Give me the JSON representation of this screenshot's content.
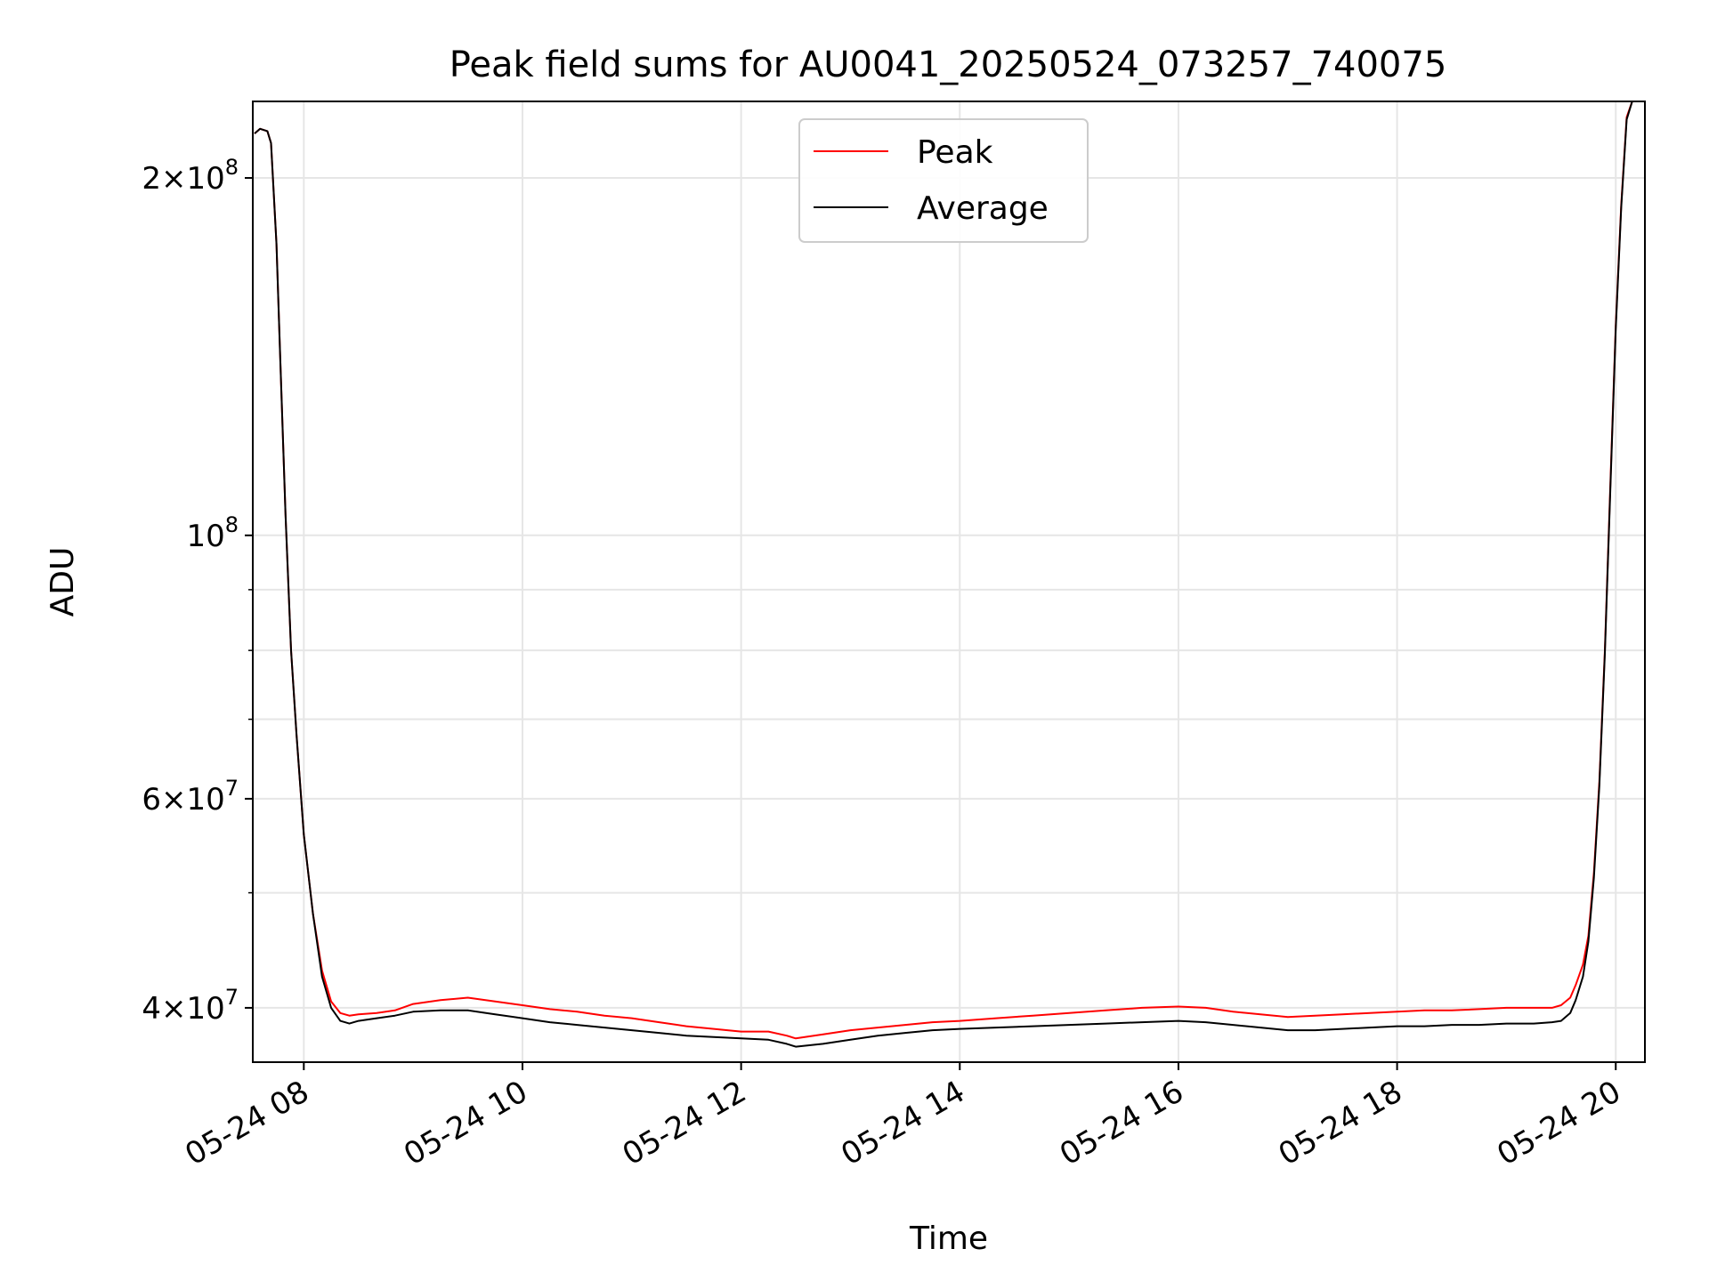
{
  "chart_data": {
    "type": "line",
    "title": "Peak field sums for AU0041_20250524_073257_740075",
    "xlabel": "Time",
    "ylabel": "ADU",
    "y_scale": "log",
    "xlim": [
      "2025-05-24T07:32:00",
      "2025-05-24T20:16:00"
    ],
    "ylim": [
      36000000,
      232000000
    ],
    "grid": true,
    "legend_position": "upper center",
    "x_ticks": [
      {
        "t": "2025-05-24T08:00:00",
        "label": "05-24 08"
      },
      {
        "t": "2025-05-24T10:00:00",
        "label": "05-24 10"
      },
      {
        "t": "2025-05-24T12:00:00",
        "label": "05-24 12"
      },
      {
        "t": "2025-05-24T14:00:00",
        "label": "05-24 14"
      },
      {
        "t": "2025-05-24T16:00:00",
        "label": "05-24 16"
      },
      {
        "t": "2025-05-24T18:00:00",
        "label": "05-24 18"
      },
      {
        "t": "2025-05-24T20:00:00",
        "label": "05-24 20"
      }
    ],
    "y_major_ticks": [
      {
        "value": 40000000,
        "mant": "4",
        "exp": "7"
      },
      {
        "value": 60000000,
        "mant": "6",
        "exp": "7"
      },
      {
        "value": 100000000,
        "mant": "",
        "exp": "8"
      },
      {
        "value": 200000000,
        "mant": "2",
        "exp": "8"
      }
    ],
    "y_minor_ticks": [
      50000000,
      70000000,
      80000000,
      90000000
    ],
    "series": [
      {
        "name": "Peak",
        "color": "#ff0000",
        "x": [
          "2025-05-24T07:33:00",
          "2025-05-24T07:36:00",
          "2025-05-24T07:40:00",
          "2025-05-24T07:42:00",
          "2025-05-24T07:45:00",
          "2025-05-24T07:47:00",
          "2025-05-24T07:50:00",
          "2025-05-24T07:53:00",
          "2025-05-24T07:56:00",
          "2025-05-24T08:00:00",
          "2025-05-24T08:05:00",
          "2025-05-24T08:10:00",
          "2025-05-24T08:15:00",
          "2025-05-24T08:20:00",
          "2025-05-24T08:25:00",
          "2025-05-24T08:30:00",
          "2025-05-24T08:40:00",
          "2025-05-24T08:50:00",
          "2025-05-24T09:00:00",
          "2025-05-24T09:15:00",
          "2025-05-24T09:30:00",
          "2025-05-24T09:45:00",
          "2025-05-24T10:00:00",
          "2025-05-24T10:15:00",
          "2025-05-24T10:30:00",
          "2025-05-24T10:45:00",
          "2025-05-24T11:00:00",
          "2025-05-24T11:15:00",
          "2025-05-24T11:30:00",
          "2025-05-24T11:45:00",
          "2025-05-24T12:00:00",
          "2025-05-24T12:15:00",
          "2025-05-24T12:25:00",
          "2025-05-24T12:30:00",
          "2025-05-24T12:45:00",
          "2025-05-24T13:00:00",
          "2025-05-24T13:15:00",
          "2025-05-24T13:30:00",
          "2025-05-24T13:45:00",
          "2025-05-24T14:00:00",
          "2025-05-24T14:20:00",
          "2025-05-24T14:40:00",
          "2025-05-24T15:00:00",
          "2025-05-24T15:20:00",
          "2025-05-24T15:40:00",
          "2025-05-24T16:00:00",
          "2025-05-24T16:15:00",
          "2025-05-24T16:30:00",
          "2025-05-24T16:45:00",
          "2025-05-24T17:00:00",
          "2025-05-24T17:15:00",
          "2025-05-24T17:30:00",
          "2025-05-24T17:45:00",
          "2025-05-24T18:00:00",
          "2025-05-24T18:15:00",
          "2025-05-24T18:30:00",
          "2025-05-24T18:45:00",
          "2025-05-24T19:00:00",
          "2025-05-24T19:15:00",
          "2025-05-24T19:25:00",
          "2025-05-24T19:30:00",
          "2025-05-24T19:35:00",
          "2025-05-24T19:38:00",
          "2025-05-24T19:42:00",
          "2025-05-24T19:45:00",
          "2025-05-24T19:48:00",
          "2025-05-24T19:51:00",
          "2025-05-24T19:54:00",
          "2025-05-24T19:57:00",
          "2025-05-24T20:00:00",
          "2025-05-24T20:03:00",
          "2025-05-24T20:06:00",
          "2025-05-24T20:09:00"
        ],
        "values": [
          218000000,
          220000000,
          219000000,
          214000000,
          176000000,
          142000000,
          104000000,
          80000000,
          68000000,
          56000000,
          48000000,
          43000000,
          40500000,
          39600000,
          39400000,
          39500000,
          39600000,
          39800000,
          40300000,
          40600000,
          40800000,
          40500000,
          40200000,
          39900000,
          39700000,
          39400000,
          39200000,
          38900000,
          38600000,
          38400000,
          38200000,
          38200000,
          37900000,
          37700000,
          38000000,
          38300000,
          38500000,
          38700000,
          38900000,
          39000000,
          39200000,
          39400000,
          39600000,
          39800000,
          40000000,
          40100000,
          40000000,
          39700000,
          39500000,
          39300000,
          39400000,
          39500000,
          39600000,
          39700000,
          39800000,
          39800000,
          39900000,
          40000000,
          40000000,
          40000000,
          40200000,
          40800000,
          41800000,
          43500000,
          46000000,
          52000000,
          62000000,
          80000000,
          110000000,
          150000000,
          190000000,
          225000000,
          232000000
        ]
      },
      {
        "name": "Average",
        "color": "#000000",
        "x": [
          "2025-05-24T07:33:00",
          "2025-05-24T07:36:00",
          "2025-05-24T07:40:00",
          "2025-05-24T07:42:00",
          "2025-05-24T07:45:00",
          "2025-05-24T07:47:00",
          "2025-05-24T07:50:00",
          "2025-05-24T07:53:00",
          "2025-05-24T07:56:00",
          "2025-05-24T08:00:00",
          "2025-05-24T08:05:00",
          "2025-05-24T08:10:00",
          "2025-05-24T08:15:00",
          "2025-05-24T08:20:00",
          "2025-05-24T08:25:00",
          "2025-05-24T08:30:00",
          "2025-05-24T08:40:00",
          "2025-05-24T08:50:00",
          "2025-05-24T09:00:00",
          "2025-05-24T09:15:00",
          "2025-05-24T09:30:00",
          "2025-05-24T09:45:00",
          "2025-05-24T10:00:00",
          "2025-05-24T10:15:00",
          "2025-05-24T10:30:00",
          "2025-05-24T10:45:00",
          "2025-05-24T11:00:00",
          "2025-05-24T11:15:00",
          "2025-05-24T11:30:00",
          "2025-05-24T11:45:00",
          "2025-05-24T12:00:00",
          "2025-05-24T12:15:00",
          "2025-05-24T12:25:00",
          "2025-05-24T12:30:00",
          "2025-05-24T12:45:00",
          "2025-05-24T13:00:00",
          "2025-05-24T13:15:00",
          "2025-05-24T13:30:00",
          "2025-05-24T13:45:00",
          "2025-05-24T14:00:00",
          "2025-05-24T14:20:00",
          "2025-05-24T14:40:00",
          "2025-05-24T15:00:00",
          "2025-05-24T15:20:00",
          "2025-05-24T15:40:00",
          "2025-05-24T16:00:00",
          "2025-05-24T16:15:00",
          "2025-05-24T16:30:00",
          "2025-05-24T16:45:00",
          "2025-05-24T17:00:00",
          "2025-05-24T17:15:00",
          "2025-05-24T17:30:00",
          "2025-05-24T17:45:00",
          "2025-05-24T18:00:00",
          "2025-05-24T18:15:00",
          "2025-05-24T18:30:00",
          "2025-05-24T18:45:00",
          "2025-05-24T19:00:00",
          "2025-05-24T19:15:00",
          "2025-05-24T19:25:00",
          "2025-05-24T19:30:00",
          "2025-05-24T19:35:00",
          "2025-05-24T19:38:00",
          "2025-05-24T19:42:00",
          "2025-05-24T19:45:00",
          "2025-05-24T19:48:00",
          "2025-05-24T19:51:00",
          "2025-05-24T19:54:00",
          "2025-05-24T19:57:00",
          "2025-05-24T20:00:00",
          "2025-05-24T20:03:00",
          "2025-05-24T20:06:00",
          "2025-05-24T20:09:00"
        ],
        "values": [
          218000000,
          220000000,
          219000000,
          214000000,
          176000000,
          142000000,
          104000000,
          80000000,
          68000000,
          56000000,
          48000000,
          42500000,
          40000000,
          39000000,
          38800000,
          39000000,
          39200000,
          39400000,
          39700000,
          39800000,
          39800000,
          39500000,
          39200000,
          38900000,
          38700000,
          38500000,
          38300000,
          38100000,
          37900000,
          37800000,
          37700000,
          37600000,
          37300000,
          37100000,
          37300000,
          37600000,
          37900000,
          38100000,
          38300000,
          38400000,
          38500000,
          38600000,
          38700000,
          38800000,
          38900000,
          39000000,
          38900000,
          38700000,
          38500000,
          38300000,
          38300000,
          38400000,
          38500000,
          38600000,
          38600000,
          38700000,
          38700000,
          38800000,
          38800000,
          38900000,
          39000000,
          39600000,
          40600000,
          42500000,
          45500000,
          51500000,
          61500000,
          79500000,
          109000000,
          149000000,
          189000000,
          224000000,
          232000000
        ]
      }
    ]
  }
}
